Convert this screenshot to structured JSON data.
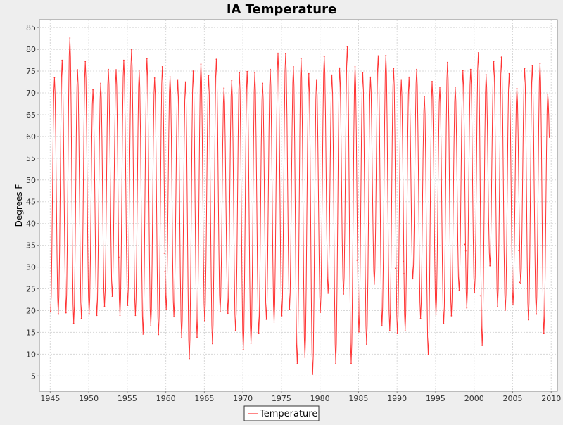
{
  "chart_data": {
    "type": "line",
    "title": "IA Temperature",
    "xlabel": "",
    "ylabel": "Degrees F",
    "xlim": [
      1943.6,
      2010.8
    ],
    "ylim": [
      1.5,
      86.8
    ],
    "x_ticks": [
      1945,
      1950,
      1955,
      1960,
      1965,
      1970,
      1975,
      1980,
      1985,
      1990,
      1995,
      2000,
      2005,
      2010
    ],
    "y_ticks": [
      5,
      10,
      15,
      20,
      25,
      30,
      35,
      40,
      45,
      50,
      55,
      60,
      65,
      70,
      75,
      80,
      85
    ],
    "grid": true,
    "legend_position": "bottom-center",
    "series": [
      {
        "name": "Temperature",
        "color": "#ff3333",
        "sampling": "monthly",
        "annual_lows": [
          [
            1945.05,
            19.8
          ],
          [
            1946.05,
            19.3
          ],
          [
            1947.05,
            19.5
          ],
          [
            1948.05,
            17.1
          ],
          [
            1949.05,
            18.2
          ],
          [
            1950.05,
            19.3
          ],
          [
            1951.05,
            18.9
          ],
          [
            1952.05,
            21.0
          ],
          [
            1953.05,
            23.3
          ],
          [
            1954.05,
            18.9
          ],
          [
            1955.05,
            21.2
          ],
          [
            1956.05,
            18.9
          ],
          [
            1957.05,
            14.6
          ],
          [
            1958.05,
            16.5
          ],
          [
            1959.05,
            14.5
          ],
          [
            1960.05,
            20.2
          ],
          [
            1961.05,
            18.6
          ],
          [
            1962.05,
            13.8
          ],
          [
            1963.05,
            9.0
          ],
          [
            1964.05,
            13.9
          ],
          [
            1965.05,
            17.7
          ],
          [
            1966.05,
            12.4
          ],
          [
            1967.05,
            19.8
          ],
          [
            1968.05,
            19.4
          ],
          [
            1969.05,
            15.5
          ],
          [
            1970.05,
            11.1
          ],
          [
            1971.05,
            12.5
          ],
          [
            1972.05,
            14.8
          ],
          [
            1973.05,
            18.0
          ],
          [
            1974.05,
            17.4
          ],
          [
            1975.05,
            18.8
          ],
          [
            1976.05,
            20.3
          ],
          [
            1977.05,
            7.8
          ],
          [
            1978.05,
            9.3
          ],
          [
            1979.05,
            5.4
          ],
          [
            1980.05,
            19.6
          ],
          [
            1981.05,
            24.0
          ],
          [
            1982.05,
            7.9
          ],
          [
            1983.05,
            23.8
          ],
          [
            1984.05,
            7.9
          ],
          [
            1985.05,
            15.1
          ],
          [
            1986.05,
            12.3
          ],
          [
            1987.05,
            26.1
          ],
          [
            1988.05,
            16.5
          ],
          [
            1989.05,
            15.4
          ],
          [
            1990.05,
            14.9
          ],
          [
            1991.05,
            15.4
          ],
          [
            1992.05,
            27.3
          ],
          [
            1993.05,
            18.2
          ],
          [
            1994.05,
            9.9
          ],
          [
            1995.05,
            19.1
          ],
          [
            1996.05,
            17.0
          ],
          [
            1997.05,
            18.8
          ],
          [
            1998.05,
            24.6
          ],
          [
            1999.05,
            20.6
          ],
          [
            2000.05,
            24.1
          ],
          [
            2001.05,
            12.0
          ],
          [
            2002.05,
            30.3
          ],
          [
            2003.05,
            21.0
          ],
          [
            2004.05,
            20.1
          ],
          [
            2005.05,
            21.3
          ],
          [
            2006.05,
            26.3
          ],
          [
            2007.05,
            17.9
          ],
          [
            2008.05,
            19.3
          ],
          [
            2009.05,
            14.8
          ]
        ],
        "annual_highs": [
          [
            1945.55,
            73.5
          ],
          [
            1946.55,
            77.5
          ],
          [
            1947.55,
            82.6
          ],
          [
            1948.55,
            75.3
          ],
          [
            1949.55,
            77.2
          ],
          [
            1950.55,
            70.7
          ],
          [
            1951.55,
            72.2
          ],
          [
            1952.55,
            75.4
          ],
          [
            1953.55,
            75.3
          ],
          [
            1954.55,
            77.5
          ],
          [
            1955.55,
            79.9
          ],
          [
            1956.55,
            75.2
          ],
          [
            1957.55,
            77.9
          ],
          [
            1958.55,
            73.4
          ],
          [
            1959.55,
            76.0
          ],
          [
            1960.55,
            73.7
          ],
          [
            1961.55,
            73.0
          ],
          [
            1962.55,
            72.5
          ],
          [
            1963.55,
            75.0
          ],
          [
            1964.55,
            76.6
          ],
          [
            1965.55,
            74.0
          ],
          [
            1966.55,
            77.7
          ],
          [
            1967.55,
            71.1
          ],
          [
            1968.55,
            72.8
          ],
          [
            1969.55,
            74.6
          ],
          [
            1970.55,
            74.9
          ],
          [
            1971.55,
            74.6
          ],
          [
            1972.55,
            72.2
          ],
          [
            1973.55,
            75.4
          ],
          [
            1974.55,
            79.1
          ],
          [
            1975.55,
            79.0
          ],
          [
            1976.55,
            76.0
          ],
          [
            1977.55,
            77.9
          ],
          [
            1978.55,
            74.4
          ],
          [
            1979.55,
            73.0
          ],
          [
            1980.55,
            78.3
          ],
          [
            1981.55,
            74.1
          ],
          [
            1982.55,
            75.7
          ],
          [
            1983.55,
            80.6
          ],
          [
            1984.55,
            76.0
          ],
          [
            1985.55,
            74.7
          ],
          [
            1986.55,
            73.6
          ],
          [
            1987.55,
            78.5
          ],
          [
            1988.55,
            78.6
          ],
          [
            1989.55,
            75.6
          ],
          [
            1990.55,
            73.0
          ],
          [
            1991.55,
            73.6
          ],
          [
            1992.55,
            75.4
          ],
          [
            1993.55,
            69.2
          ],
          [
            1994.55,
            72.6
          ],
          [
            1995.55,
            71.3
          ],
          [
            1996.55,
            77.0
          ],
          [
            1997.55,
            71.3
          ],
          [
            1998.55,
            75.1
          ],
          [
            1999.55,
            75.4
          ],
          [
            2000.55,
            79.2
          ],
          [
            2001.55,
            74.2
          ],
          [
            2002.55,
            77.2
          ],
          [
            2003.55,
            78.2
          ],
          [
            2004.55,
            74.4
          ],
          [
            2005.55,
            71.0
          ],
          [
            2006.55,
            75.6
          ],
          [
            2007.55,
            76.3
          ],
          [
            2008.55,
            76.7
          ],
          [
            2009.55,
            69.7
          ]
        ],
        "spring_fall_values": [
          [
            1953.8,
            36.5
          ],
          [
            1953.9,
            32.3
          ],
          [
            1959.8,
            33.2
          ],
          [
            1959.9,
            29.0
          ],
          [
            1984.8,
            31.6
          ],
          [
            1984.9,
            28.9
          ],
          [
            1989.8,
            29.7
          ],
          [
            1989.9,
            25.4
          ],
          [
            1990.8,
            31.3
          ],
          [
            1990.9,
            28.5
          ],
          [
            1998.8,
            35.2
          ],
          [
            1998.9,
            33.7
          ],
          [
            2000.8,
            23.4
          ],
          [
            2000.9,
            20.0
          ],
          [
            2005.8,
            33.8
          ],
          [
            2005.9,
            26.5
          ]
        ]
      }
    ]
  }
}
